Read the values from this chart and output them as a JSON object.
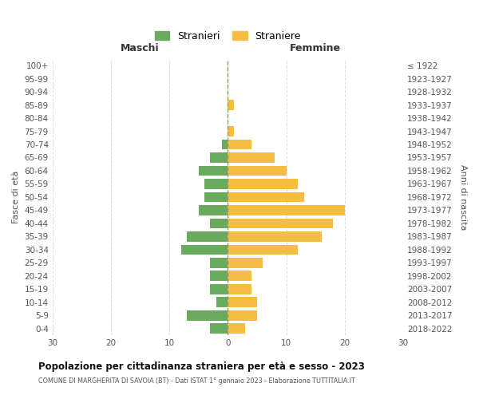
{
  "age_groups": [
    "0-4",
    "5-9",
    "10-14",
    "15-19",
    "20-24",
    "25-29",
    "30-34",
    "35-39",
    "40-44",
    "45-49",
    "50-54",
    "55-59",
    "60-64",
    "65-69",
    "70-74",
    "75-79",
    "80-84",
    "85-89",
    "90-94",
    "95-99",
    "100+"
  ],
  "birth_years": [
    "2018-2022",
    "2013-2017",
    "2008-2012",
    "2003-2007",
    "1998-2002",
    "1993-1997",
    "1988-1992",
    "1983-1987",
    "1978-1982",
    "1973-1977",
    "1968-1972",
    "1963-1967",
    "1958-1962",
    "1953-1957",
    "1948-1952",
    "1943-1947",
    "1938-1942",
    "1933-1937",
    "1928-1932",
    "1923-1927",
    "≤ 1922"
  ],
  "maschi": [
    3,
    7,
    2,
    3,
    3,
    3,
    8,
    7,
    3,
    5,
    4,
    4,
    5,
    3,
    1,
    0,
    0,
    0,
    0,
    0,
    0
  ],
  "femmine": [
    3,
    5,
    5,
    4,
    4,
    6,
    12,
    16,
    18,
    20,
    13,
    12,
    10,
    8,
    4,
    1,
    0,
    1,
    0,
    0,
    0
  ],
  "maschi_color": "#6aaa5e",
  "femmine_color": "#f5bc42",
  "title": "Popolazione per cittadinanza straniera per età e sesso - 2023",
  "subtitle": "COMUNE DI MARGHERITA DI SAVOIA (BT) - Dati ISTAT 1° gennaio 2023 - Elaborazione TUTTITALIA.IT",
  "xlabel_left": "Maschi",
  "xlabel_right": "Femmine",
  "ylabel_left": "Fasce di età",
  "ylabel_right": "Anni di nascita",
  "legend_stranieri": "Stranieri",
  "legend_straniere": "Straniere",
  "xlim": 30,
  "background_color": "#ffffff",
  "grid_color": "#dddddd"
}
